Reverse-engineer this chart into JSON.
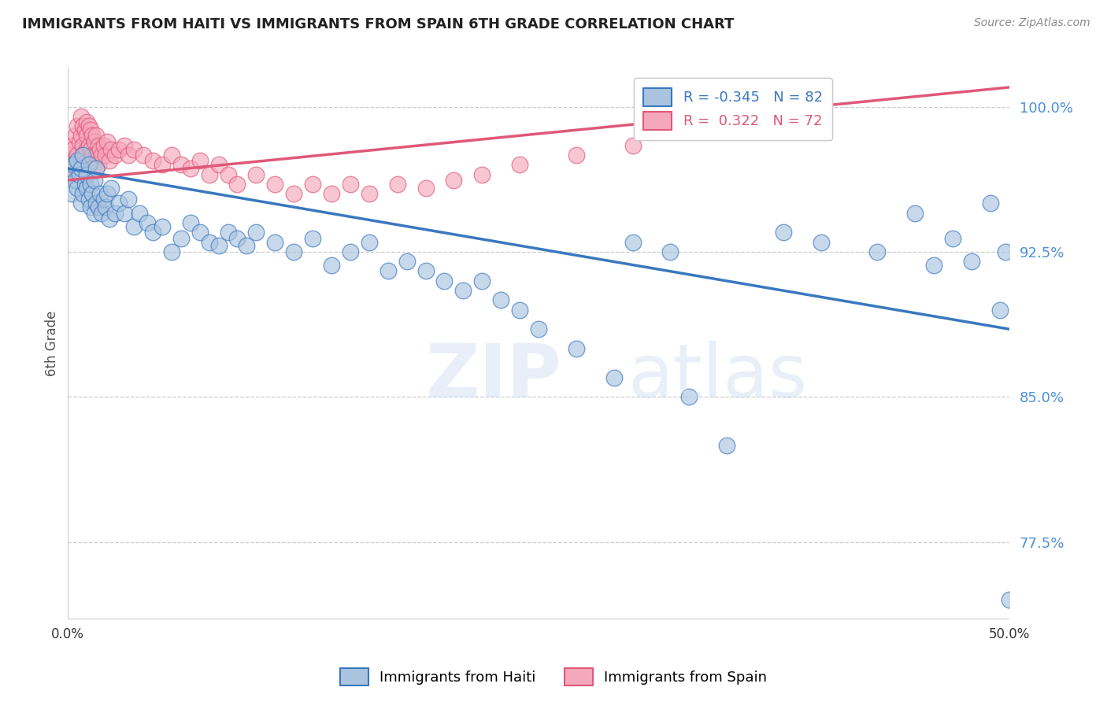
{
  "title": "IMMIGRANTS FROM HAITI VS IMMIGRANTS FROM SPAIN 6TH GRADE CORRELATION CHART",
  "source": "Source: ZipAtlas.com",
  "ylabel": "6th Grade",
  "xlim": [
    0.0,
    50.0
  ],
  "ylim": [
    73.5,
    102.0
  ],
  "yticks": [
    77.5,
    85.0,
    92.5,
    100.0
  ],
  "ytick_labels": [
    "77.5%",
    "85.0%",
    "92.5%",
    "100.0%"
  ],
  "haiti_R": -0.345,
  "haiti_N": 82,
  "spain_R": 0.322,
  "spain_N": 72,
  "haiti_color": "#aac4e0",
  "spain_color": "#f5a8bc",
  "haiti_line_color": "#3a78bf",
  "spain_line_color": "#e05878",
  "legend_label_haiti": "Immigrants from Haiti",
  "legend_label_spain": "Immigrants from Spain",
  "watermark_zip": "ZIP",
  "watermark_atlas": "atlas",
  "background_color": "#ffffff",
  "grid_color": "#cccccc",
  "haiti_points_x": [
    0.1,
    0.2,
    0.3,
    0.4,
    0.5,
    0.5,
    0.6,
    0.7,
    0.7,
    0.8,
    0.8,
    0.9,
    1.0,
    1.0,
    1.1,
    1.1,
    1.2,
    1.2,
    1.3,
    1.4,
    1.4,
    1.5,
    1.5,
    1.6,
    1.7,
    1.8,
    1.9,
    2.0,
    2.1,
    2.2,
    2.3,
    2.5,
    2.7,
    3.0,
    3.2,
    3.5,
    3.8,
    4.2,
    4.5,
    5.0,
    5.5,
    6.0,
    6.5,
    7.0,
    7.5,
    8.0,
    8.5,
    9.0,
    9.5,
    10.0,
    11.0,
    12.0,
    13.0,
    14.0,
    15.0,
    16.0,
    17.0,
    18.0,
    19.0,
    20.0,
    21.0,
    22.0,
    23.0,
    24.0,
    25.0,
    27.0,
    29.0,
    30.0,
    32.0,
    33.0,
    35.0,
    38.0,
    40.0,
    43.0,
    45.0,
    46.0,
    47.0,
    48.0,
    49.0,
    49.5,
    49.8,
    50.0
  ],
  "haiti_points_y": [
    96.8,
    95.5,
    97.0,
    96.2,
    95.8,
    97.2,
    96.5,
    95.0,
    96.8,
    97.5,
    95.5,
    96.0,
    95.8,
    96.5,
    97.0,
    95.2,
    96.0,
    94.8,
    95.5,
    96.2,
    94.5,
    95.0,
    96.8,
    94.8,
    95.5,
    94.5,
    95.2,
    94.8,
    95.5,
    94.2,
    95.8,
    94.5,
    95.0,
    94.5,
    95.2,
    93.8,
    94.5,
    94.0,
    93.5,
    93.8,
    92.5,
    93.2,
    94.0,
    93.5,
    93.0,
    92.8,
    93.5,
    93.2,
    92.8,
    93.5,
    93.0,
    92.5,
    93.2,
    91.8,
    92.5,
    93.0,
    91.5,
    92.0,
    91.5,
    91.0,
    90.5,
    91.0,
    90.0,
    89.5,
    88.5,
    87.5,
    86.0,
    93.0,
    92.5,
    85.0,
    82.5,
    93.5,
    93.0,
    92.5,
    94.5,
    91.8,
    93.2,
    92.0,
    95.0,
    89.5,
    92.5,
    74.5
  ],
  "spain_points_x": [
    0.1,
    0.2,
    0.2,
    0.3,
    0.3,
    0.4,
    0.4,
    0.5,
    0.5,
    0.6,
    0.6,
    0.7,
    0.7,
    0.7,
    0.8,
    0.8,
    0.8,
    0.9,
    0.9,
    1.0,
    1.0,
    1.0,
    1.1,
    1.1,
    1.2,
    1.2,
    1.2,
    1.3,
    1.3,
    1.4,
    1.4,
    1.5,
    1.5,
    1.6,
    1.6,
    1.7,
    1.8,
    1.9,
    2.0,
    2.1,
    2.2,
    2.3,
    2.5,
    2.7,
    3.0,
    3.2,
    3.5,
    4.0,
    4.5,
    5.0,
    5.5,
    6.0,
    6.5,
    7.0,
    7.5,
    8.0,
    8.5,
    9.0,
    10.0,
    11.0,
    12.0,
    13.0,
    14.0,
    15.0,
    16.0,
    17.5,
    19.0,
    20.5,
    22.0,
    24.0,
    27.0,
    30.0
  ],
  "spain_points_y": [
    97.5,
    98.0,
    96.5,
    97.8,
    96.8,
    98.5,
    97.0,
    99.0,
    97.5,
    98.2,
    97.0,
    99.5,
    98.5,
    97.2,
    99.0,
    98.0,
    97.5,
    98.8,
    97.5,
    99.2,
    98.5,
    97.8,
    99.0,
    98.0,
    98.8,
    97.8,
    97.2,
    98.5,
    97.5,
    98.2,
    97.0,
    98.5,
    97.5,
    98.0,
    97.0,
    97.8,
    97.5,
    98.0,
    97.5,
    98.2,
    97.2,
    97.8,
    97.5,
    97.8,
    98.0,
    97.5,
    97.8,
    97.5,
    97.2,
    97.0,
    97.5,
    97.0,
    96.8,
    97.2,
    96.5,
    97.0,
    96.5,
    96.0,
    96.5,
    96.0,
    95.5,
    96.0,
    95.5,
    96.0,
    95.5,
    96.0,
    95.8,
    96.2,
    96.5,
    97.0,
    97.5,
    98.0
  ],
  "haiti_trendline_x": [
    0.0,
    50.0
  ],
  "haiti_trendline_y": [
    96.8,
    88.5
  ],
  "spain_trendline_x": [
    0.0,
    50.0
  ],
  "spain_trendline_y": [
    96.2,
    101.0
  ]
}
